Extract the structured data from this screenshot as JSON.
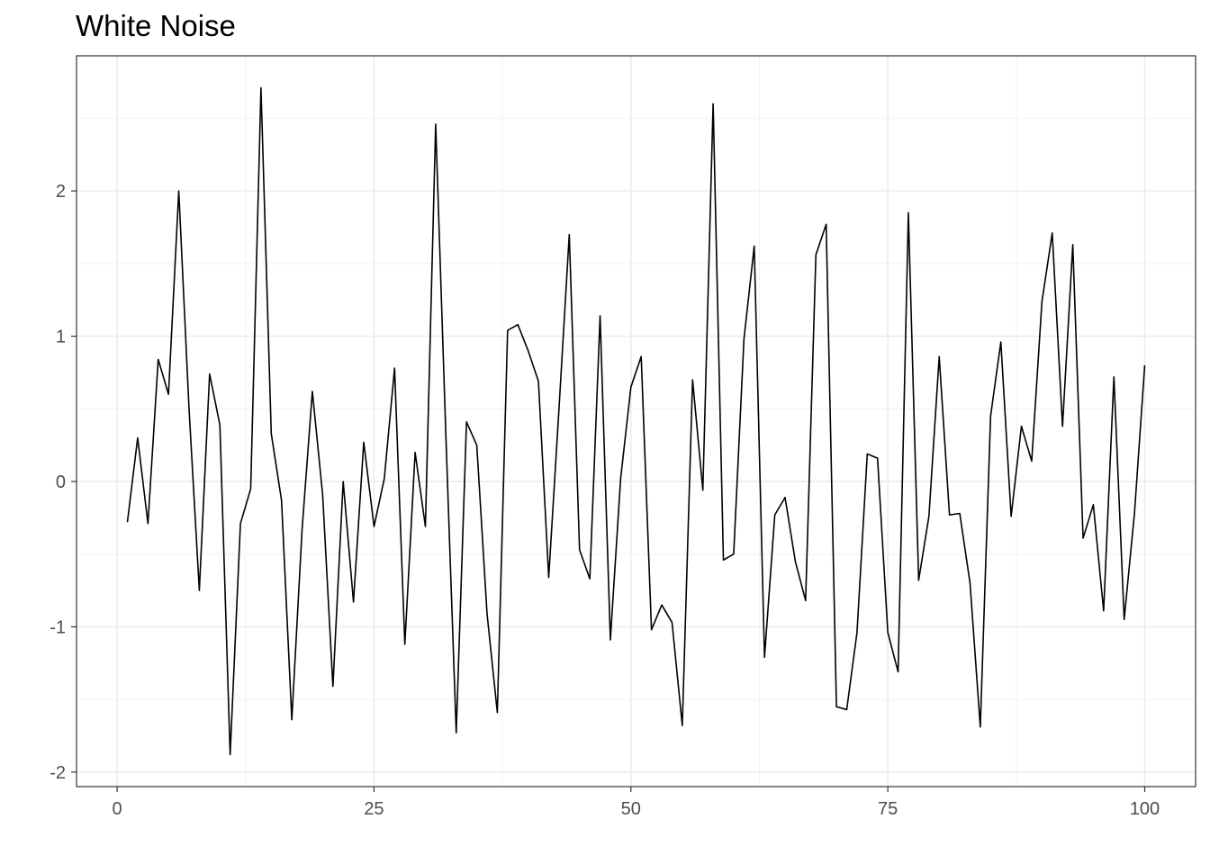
{
  "chart_data": {
    "type": "line",
    "title": "White Noise",
    "xlabel": "",
    "ylabel": "",
    "xlim": [
      -3.95,
      104.95
    ],
    "ylim": [
      -2.1,
      2.93
    ],
    "xticks": [
      0,
      25,
      50,
      75,
      100
    ],
    "yticks": [
      -2,
      -1,
      0,
      1,
      2
    ],
    "x_tick_labels": [
      "0",
      "25",
      "50",
      "75",
      "100"
    ],
    "y_tick_labels": [
      "-2",
      "-1",
      "0",
      "1",
      "2"
    ],
    "grid": true,
    "legend": "none",
    "line_color": "#000000",
    "series": [
      {
        "x": [
          1,
          2,
          3,
          4,
          5,
          6,
          7,
          8,
          9,
          10,
          11,
          12,
          13,
          14,
          15,
          16,
          17,
          18,
          19,
          20,
          21,
          22,
          23,
          24,
          25,
          26,
          27,
          28,
          29,
          30,
          31,
          32,
          33,
          34,
          35,
          36,
          37,
          38,
          39,
          40,
          41,
          42,
          43,
          44,
          45,
          46,
          47,
          48,
          49,
          50,
          51,
          52,
          53,
          54,
          55,
          56,
          57,
          58,
          59,
          60,
          61,
          62,
          63,
          64,
          65,
          66,
          67,
          68,
          69,
          70,
          71,
          72,
          73,
          74,
          75,
          76,
          77,
          78,
          79,
          80,
          81,
          82,
          83,
          84,
          85,
          86,
          87,
          88,
          89,
          90,
          91,
          92,
          93,
          94,
          95,
          96,
          97,
          98,
          99,
          100
        ],
        "values": [
          -0.28,
          0.3,
          -0.29,
          0.84,
          0.6,
          2.0,
          0.5,
          -0.75,
          0.74,
          0.39,
          -1.88,
          -0.29,
          -0.05,
          2.71,
          0.33,
          -0.13,
          -1.64,
          -0.33,
          0.62,
          -0.09,
          -1.41,
          0.0,
          -0.83,
          0.27,
          -0.31,
          0.02,
          0.78,
          -1.12,
          0.2,
          -0.31,
          2.46,
          0.3,
          -1.73,
          0.41,
          0.25,
          -0.91,
          -1.59,
          1.04,
          1.08,
          0.9,
          0.69,
          -0.66,
          0.5,
          1.7,
          -0.47,
          -0.67,
          1.14,
          -1.09,
          0.02,
          0.65,
          0.86,
          -1.02,
          -0.85,
          -0.97,
          -1.68,
          0.7,
          -0.06,
          2.6,
          -0.54,
          -0.5,
          0.98,
          1.62,
          -1.21,
          -0.23,
          -0.11,
          -0.55,
          -0.82,
          1.56,
          1.77,
          -1.55,
          -1.57,
          -1.04,
          0.19,
          0.16,
          -1.04,
          -1.31,
          1.85,
          -0.68,
          -0.24,
          0.86,
          -0.23,
          -0.22,
          -0.7,
          -1.69,
          0.45,
          0.96,
          -0.24,
          0.38,
          0.14,
          1.24,
          1.71,
          0.38,
          1.63,
          -0.39,
          -0.16,
          -0.89,
          0.72,
          -0.95,
          -0.22,
          0.8
        ]
      }
    ]
  },
  "style": {
    "panel_border": "#333333",
    "grid_major": "#ebebeb",
    "grid_minor": "#f2f2f2",
    "tick_color": "#333333",
    "tick_label_color": "#4d4d4d",
    "title_color": "#000000"
  }
}
